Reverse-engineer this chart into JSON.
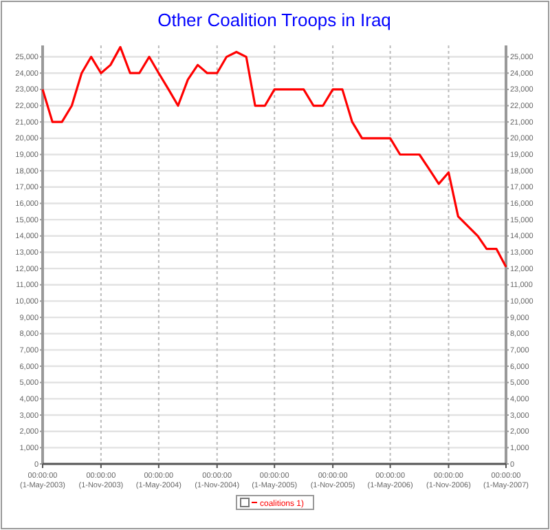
{
  "chart_data": {
    "type": "line",
    "title": "Other Coalition Troops in Iraq",
    "x": [
      "2003-05",
      "2003-06",
      "2003-07",
      "2003-08",
      "2003-09",
      "2003-10",
      "2003-11",
      "2003-12",
      "2004-01",
      "2004-02",
      "2004-03",
      "2004-04",
      "2004-05",
      "2004-06",
      "2004-07",
      "2004-08",
      "2004-09",
      "2004-10",
      "2004-11",
      "2004-12",
      "2005-01",
      "2005-02",
      "2005-03",
      "2005-04",
      "2005-05",
      "2005-06",
      "2005-07",
      "2005-08",
      "2005-09",
      "2005-10",
      "2005-11",
      "2005-12",
      "2006-01",
      "2006-02",
      "2006-03",
      "2006-04",
      "2006-05",
      "2006-06",
      "2006-07",
      "2006-08",
      "2006-09",
      "2006-10",
      "2006-11",
      "2006-12",
      "2007-01",
      "2007-02",
      "2007-03",
      "2007-04",
      "2007-05"
    ],
    "series": [
      {
        "name": "coalitions 1)",
        "color": "#ff0000",
        "values": [
          23000,
          21000,
          21000,
          22000,
          24000,
          25000,
          24000,
          24500,
          25600,
          24000,
          24000,
          25000,
          24000,
          23000,
          22000,
          23600,
          24500,
          24000,
          24000,
          25000,
          25300,
          25000,
          22000,
          22000,
          23000,
          23000,
          23000,
          23000,
          22000,
          22000,
          23000,
          23000,
          21000,
          20000,
          20000,
          20000,
          20000,
          19000,
          19000,
          19000,
          18100,
          17200,
          17900,
          15200,
          14600,
          14000,
          13200,
          13200,
          12100
        ]
      }
    ],
    "xlim": [
      "2003-05",
      "2007-05"
    ],
    "xticks": [
      {
        "value": "2003-05",
        "label": "00:00:00\n(1-May-2003)"
      },
      {
        "value": "2003-11",
        "label": "00:00:00\n(1-Nov-2003)"
      },
      {
        "value": "2004-05",
        "label": "00:00:00\n(1-May-2004)"
      },
      {
        "value": "2004-11",
        "label": "00:00:00\n(1-Nov-2004)"
      },
      {
        "value": "2005-05",
        "label": "00:00:00\n(1-May-2005)"
      },
      {
        "value": "2005-11",
        "label": "00:00:00\n(1-Nov-2005)"
      },
      {
        "value": "2006-05",
        "label": "00:00:00\n(1-May-2006)"
      },
      {
        "value": "2006-11",
        "label": "00:00:00\n(1-Nov-2006)"
      },
      {
        "value": "2007-05",
        "label": "00:00:00\n(1-May-2007)"
      }
    ],
    "ylim": [
      0,
      25700
    ],
    "yticks": [
      0,
      {
        "value": 1000,
        "label": "1,000"
      },
      {
        "value": 2000,
        "label": "2,000"
      },
      {
        "value": 3000,
        "label": "3,000"
      },
      {
        "value": 4000,
        "label": "4,000"
      },
      {
        "value": 5000,
        "label": "5,000"
      },
      {
        "value": 6000,
        "label": "6,000"
      },
      {
        "value": 7000,
        "label": "7,000"
      },
      {
        "value": 8000,
        "label": "8,000"
      },
      {
        "value": 9000,
        "label": "9,000"
      },
      {
        "value": 10000,
        "label": "10,000"
      },
      {
        "value": 11000,
        "label": "11,000"
      },
      {
        "value": 12000,
        "label": "12,000"
      },
      {
        "value": 13000,
        "label": "13,000"
      },
      {
        "value": 14000,
        "label": "14,000"
      },
      {
        "value": 15000,
        "label": "15,000"
      },
      {
        "value": 16000,
        "label": "16,000"
      },
      {
        "value": 17000,
        "label": "17,000"
      },
      {
        "value": 18000,
        "label": "18,000"
      },
      {
        "value": 19000,
        "label": "19,000"
      },
      {
        "value": 20000,
        "label": "20,000"
      },
      {
        "value": 21000,
        "label": "21,000"
      },
      {
        "value": 22000,
        "label": "22,000"
      },
      {
        "value": 23000,
        "label": "23,000"
      },
      {
        "value": 24000,
        "label": "24,000"
      },
      {
        "value": 25000,
        "label": "25,000"
      }
    ],
    "y2lim": [
      0,
      25700
    ],
    "y2ticks": [
      0,
      {
        "value": 1000,
        "label": "1,000"
      },
      {
        "value": 2000,
        "label": "2,000"
      },
      {
        "value": 3000,
        "label": "3,000"
      },
      {
        "value": 4000,
        "label": "4,000"
      },
      {
        "value": 5000,
        "label": "5,000"
      },
      {
        "value": 6000,
        "label": "6,000"
      },
      {
        "value": 7000,
        "label": "7,000"
      },
      {
        "value": 8000,
        "label": "8,000"
      },
      {
        "value": 9000,
        "label": "9,000"
      },
      {
        "value": 10000,
        "label": "10,000"
      },
      {
        "value": 11000,
        "label": "11,000"
      },
      {
        "value": 12000,
        "label": "12,000"
      },
      {
        "value": 13000,
        "label": "13,000"
      },
      {
        "value": 14000,
        "label": "14,000"
      },
      {
        "value": 15000,
        "label": "15,000"
      },
      {
        "value": 16000,
        "label": "16,000"
      },
      {
        "value": 17000,
        "label": "17,000"
      },
      {
        "value": 18000,
        "label": "18,000"
      },
      {
        "value": 19000,
        "label": "19,000"
      },
      {
        "value": 20000,
        "label": "20,000"
      },
      {
        "value": 21000,
        "label": "21,000"
      },
      {
        "value": 22000,
        "label": "22,000"
      },
      {
        "value": 23000,
        "label": "23,000"
      },
      {
        "value": 24000,
        "label": "24,000"
      },
      {
        "value": 25000,
        "label": "25,000"
      }
    ],
    "grid": true,
    "legend": "bottom",
    "marker": "none",
    "line_style": "solid"
  }
}
